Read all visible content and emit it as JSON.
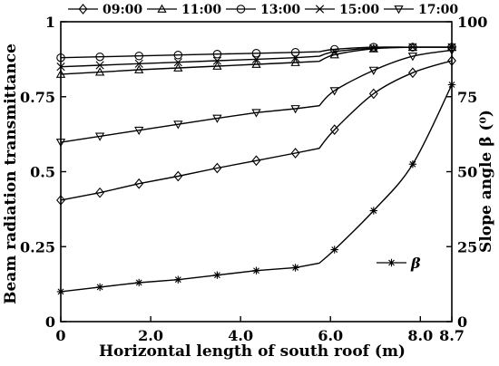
{
  "chart_data": {
    "type": "line",
    "xlabel": "Horizontal length of south roof (m)",
    "ylabel_left": "Beam radiation transmittance",
    "ylabel_right": "Slope angle β (⁰)",
    "xlim": [
      0,
      8.7
    ],
    "ylim_left": [
      0,
      1
    ],
    "ylim_right": [
      0,
      100
    ],
    "x_ticks": [
      {
        "value": 0,
        "label": "0"
      },
      {
        "value": 2,
        "label": "2.0"
      },
      {
        "value": 4,
        "label": "4.0"
      },
      {
        "value": 6,
        "label": "6.0"
      },
      {
        "value": 8,
        "label": "8.0"
      },
      {
        "value": 8.7,
        "label": "8.7"
      }
    ],
    "y_left_ticks": [
      {
        "value": 0,
        "label": "0"
      },
      {
        "value": 0.25,
        "label": "0.25"
      },
      {
        "value": 0.5,
        "label": "0.5"
      },
      {
        "value": 0.75,
        "label": "0.75"
      },
      {
        "value": 1,
        "label": "1"
      }
    ],
    "y_right_ticks": [
      {
        "value": 0,
        "label": "0"
      },
      {
        "value": 25,
        "label": "25"
      },
      {
        "value": 50,
        "label": "50"
      },
      {
        "value": 75,
        "label": "75"
      },
      {
        "value": 100,
        "label": "100"
      }
    ],
    "grid": false,
    "legend_top": [
      {
        "name": "09:00",
        "marker": "diamond"
      },
      {
        "name": "11:00",
        "marker": "triangle-up"
      },
      {
        "name": "13:00",
        "marker": "circle"
      },
      {
        "name": "15:00",
        "marker": "x"
      },
      {
        "name": "17:00",
        "marker": "triangle-down"
      }
    ],
    "legend_beta": {
      "name": "β",
      "marker": "asterisk"
    },
    "marker_x": [
      0,
      0.87,
      1.74,
      2.61,
      3.48,
      4.35,
      5.22,
      6.09,
      6.96,
      7.83,
      8.7
    ],
    "breakpoint_x": 5.75,
    "series": [
      {
        "name": "09:00",
        "marker": "diamond",
        "axis": "left",
        "x": [
          0,
          0.87,
          1.74,
          2.61,
          3.48,
          4.35,
          5.22,
          5.75,
          6.09,
          6.96,
          7.83,
          8.7
        ],
        "y": [
          0.405,
          0.43,
          0.46,
          0.485,
          0.512,
          0.537,
          0.562,
          0.578,
          0.64,
          0.76,
          0.83,
          0.87
        ]
      },
      {
        "name": "11:00",
        "marker": "triangle-up",
        "axis": "left",
        "x": [
          0,
          0.87,
          1.74,
          2.61,
          3.48,
          4.35,
          5.22,
          5.75,
          6.09,
          6.96,
          7.83,
          8.7
        ],
        "y": [
          0.825,
          0.832,
          0.84,
          0.846,
          0.852,
          0.858,
          0.864,
          0.868,
          0.89,
          0.91,
          0.915,
          0.915
        ]
      },
      {
        "name": "13:00",
        "marker": "circle",
        "axis": "left",
        "x": [
          0,
          0.87,
          1.74,
          2.61,
          3.48,
          4.35,
          5.22,
          5.75,
          6.09,
          6.96,
          7.83,
          8.7
        ],
        "y": [
          0.88,
          0.883,
          0.886,
          0.889,
          0.892,
          0.895,
          0.898,
          0.9,
          0.908,
          0.915,
          0.915,
          0.915
        ]
      },
      {
        "name": "15:00",
        "marker": "x",
        "axis": "left",
        "x": [
          0,
          0.87,
          1.74,
          2.61,
          3.48,
          4.35,
          5.22,
          5.75,
          6.09,
          6.96,
          7.83,
          8.7
        ],
        "y": [
          0.85,
          0.855,
          0.86,
          0.865,
          0.87,
          0.875,
          0.88,
          0.885,
          0.9,
          0.912,
          0.915,
          0.915
        ]
      },
      {
        "name": "17:00",
        "marker": "triangle-down",
        "axis": "left",
        "x": [
          0,
          0.87,
          1.74,
          2.61,
          3.48,
          4.35,
          5.22,
          5.75,
          6.09,
          6.96,
          7.83,
          8.7
        ],
        "y": [
          0.598,
          0.618,
          0.638,
          0.658,
          0.678,
          0.697,
          0.71,
          0.72,
          0.77,
          0.838,
          0.885,
          0.905
        ]
      },
      {
        "name": "β",
        "marker": "asterisk",
        "axis": "right",
        "x": [
          0,
          0.87,
          1.74,
          2.61,
          3.48,
          4.35,
          5.22,
          5.75,
          6.09,
          6.96,
          7.83,
          8.7
        ],
        "y": [
          10,
          11.5,
          13,
          14,
          15.5,
          17,
          18,
          19.5,
          24,
          37,
          52.5,
          79
        ]
      }
    ]
  }
}
